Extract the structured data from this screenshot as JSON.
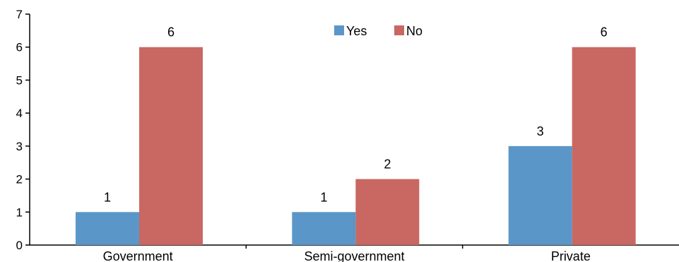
{
  "chart_data": {
    "type": "bar",
    "categories": [
      "Government",
      "Semi-government",
      "Private"
    ],
    "series": [
      {
        "name": "Yes",
        "values": [
          1,
          1,
          3
        ],
        "color": "#5b96c8"
      },
      {
        "name": "No",
        "values": [
          6,
          2,
          6
        ],
        "color": "#c96762"
      }
    ],
    "ylim": [
      0,
      7
    ],
    "yticks": [
      "0",
      "1",
      "2",
      "3",
      "4",
      "5",
      "6",
      "7"
    ],
    "data_labels": true,
    "grid": false,
    "legend_position": "top-center"
  }
}
